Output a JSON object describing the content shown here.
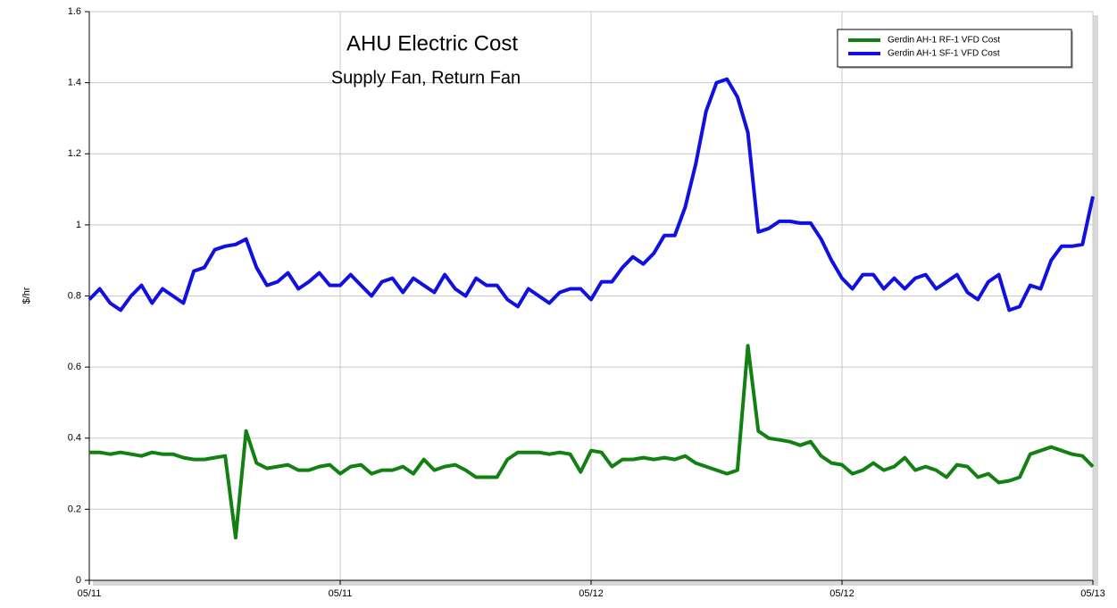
{
  "chart_data": {
    "type": "line",
    "title": "AHU Electric Cost",
    "subtitle": "Supply Fan, Return Fan",
    "y_label": "$/hr",
    "categories": [
      "05/11",
      null,
      null,
      null,
      null,
      null,
      null,
      null,
      null,
      null,
      null,
      null,
      null,
      null,
      null,
      null,
      null,
      null,
      null,
      null,
      null,
      null,
      null,
      null,
      "05/11",
      null,
      null,
      null,
      null,
      null,
      null,
      null,
      null,
      null,
      null,
      null,
      null,
      null,
      null,
      null,
      null,
      null,
      null,
      null,
      null,
      null,
      null,
      null,
      "05/12",
      null,
      null,
      null,
      null,
      null,
      null,
      null,
      null,
      null,
      null,
      null,
      null,
      null,
      null,
      null,
      null,
      null,
      null,
      null,
      null,
      null,
      null,
      null,
      "05/12",
      null,
      null,
      null,
      null,
      null,
      null,
      null,
      null,
      null,
      null,
      null,
      null,
      null,
      null,
      null,
      null,
      null,
      null,
      null,
      null,
      null,
      null,
      null,
      "05/13"
    ],
    "series": [
      {
        "name": "Gerdin AH-1 RF-1 VFD Cost",
        "color": "#128012",
        "values": [
          0.36,
          0.36,
          0.355,
          0.36,
          0.355,
          0.35,
          0.36,
          0.355,
          0.355,
          0.345,
          0.34,
          0.34,
          0.345,
          0.35,
          0.12,
          0.42,
          0.33,
          0.315,
          0.32,
          0.325,
          0.31,
          0.31,
          0.32,
          0.325,
          0.3,
          0.32,
          0.325,
          0.3,
          0.31,
          0.31,
          0.32,
          0.3,
          0.34,
          0.31,
          0.32,
          0.325,
          0.31,
          0.29,
          0.29,
          0.29,
          0.34,
          0.36,
          0.36,
          0.36,
          0.355,
          0.36,
          0.355,
          0.305,
          0.365,
          0.36,
          0.32,
          0.34,
          0.34,
          0.345,
          0.34,
          0.345,
          0.34,
          0.35,
          0.33,
          0.32,
          0.31,
          0.3,
          0.31,
          0.66,
          0.42,
          0.4,
          0.395,
          0.39,
          0.38,
          0.39,
          0.35,
          0.33,
          0.325,
          0.3,
          0.31,
          0.33,
          0.31,
          0.32,
          0.345,
          0.31,
          0.32,
          0.31,
          0.29,
          0.325,
          0.32,
          0.29,
          0.3,
          0.275,
          0.28,
          0.29,
          0.355,
          0.365,
          0.375,
          0.365,
          0.355,
          0.35,
          0.32
        ]
      },
      {
        "name": "Gerdin AH-1 SF-1 VFD Cost",
        "color": "#1010e0",
        "values": [
          0.79,
          0.82,
          0.78,
          0.76,
          0.8,
          0.83,
          0.78,
          0.82,
          0.8,
          0.78,
          0.87,
          0.88,
          0.93,
          0.94,
          0.945,
          0.96,
          0.88,
          0.83,
          0.84,
          0.865,
          0.82,
          0.84,
          0.865,
          0.83,
          0.83,
          0.86,
          0.83,
          0.8,
          0.84,
          0.85,
          0.81,
          0.85,
          0.83,
          0.81,
          0.86,
          0.82,
          0.8,
          0.85,
          0.83,
          0.83,
          0.79,
          0.77,
          0.82,
          0.8,
          0.78,
          0.81,
          0.82,
          0.82,
          0.79,
          0.84,
          0.84,
          0.88,
          0.91,
          0.89,
          0.92,
          0.97,
          0.97,
          1.05,
          1.17,
          1.32,
          1.4,
          1.41,
          1.36,
          1.26,
          0.98,
          0.99,
          1.01,
          1.01,
          1.005,
          1.005,
          0.96,
          0.9,
          0.85,
          0.82,
          0.86,
          0.86,
          0.82,
          0.85,
          0.82,
          0.85,
          0.86,
          0.82,
          0.84,
          0.86,
          0.81,
          0.79,
          0.84,
          0.86,
          0.76,
          0.77,
          0.83,
          0.82,
          0.9,
          0.94,
          0.94,
          0.945,
          1.08
        ]
      }
    ],
    "ylim": [
      0,
      1.6
    ],
    "yticks": [
      0,
      0.2,
      0.4,
      0.6,
      0.8,
      1,
      1.2,
      1.4,
      1.6
    ],
    "grid": true,
    "legend": "top-right"
  }
}
